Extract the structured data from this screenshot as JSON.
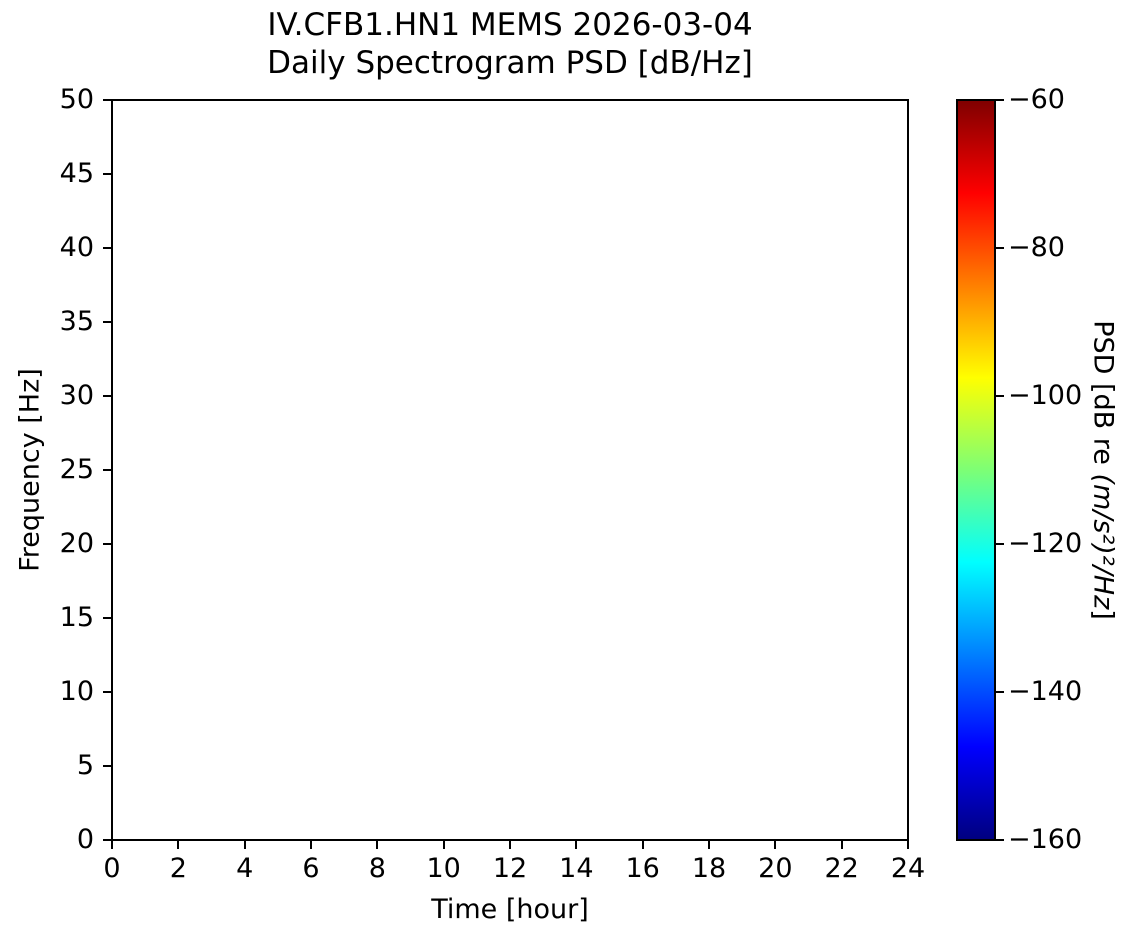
{
  "figure": {
    "background": "#ffffff",
    "text_color": "#000000",
    "spine_color": "#000000"
  },
  "chart_data": {
    "type": "heatmap",
    "title_lines": [
      "IV.CFB1.HN1 MEMS 2026-03-04",
      "Daily Spectrogram PSD [dB/Hz]"
    ],
    "xlabel": "Time [hour]",
    "ylabel": "Frequency [Hz]",
    "xlim": [
      0,
      24
    ],
    "ylim": [
      0,
      50
    ],
    "xticks": [
      0,
      2,
      4,
      6,
      8,
      10,
      12,
      14,
      16,
      18,
      20,
      22,
      24
    ],
    "yticks": [
      0,
      5,
      10,
      15,
      20,
      25,
      30,
      35,
      40,
      45,
      50
    ],
    "grid": false,
    "values": [],
    "colorbar": {
      "label_prefix": "PSD [dB re ",
      "label_math": "(m/s²)²/Hz",
      "label_suffix": "]",
      "min": -160,
      "max": -60,
      "ticks": [
        -60,
        -80,
        -100,
        -120,
        -140,
        -160
      ],
      "colormap": "jet",
      "colormap_stops": [
        {
          "pos": 0.0,
          "color": "#000080"
        },
        {
          "pos": 0.125,
          "color": "#0000ff"
        },
        {
          "pos": 0.375,
          "color": "#00ffff"
        },
        {
          "pos": 0.5,
          "color": "#7dff75"
        },
        {
          "pos": 0.625,
          "color": "#ffff00"
        },
        {
          "pos": 0.875,
          "color": "#ff0000"
        },
        {
          "pos": 1.0,
          "color": "#800000"
        }
      ]
    }
  }
}
